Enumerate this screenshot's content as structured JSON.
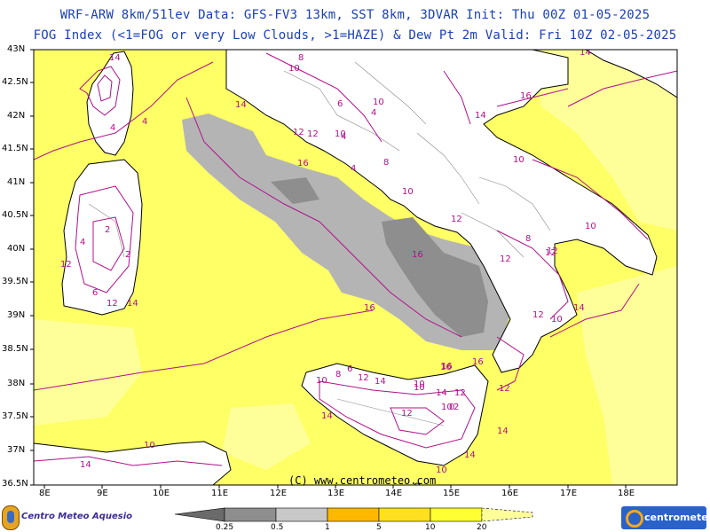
{
  "header": {
    "line1": "WRF-ARW 8km/51lev  Data: GFS-FV3 13km, SST 8km, 3DVAR  Init: Thu 00Z 01-05-2025",
    "line2": "FOG Index (<1=FOG or very Low Clouds, >1=HAZE) & Dew Pt 2m  Valid: Fri 10Z 02-05-2025"
  },
  "axes": {
    "lat_labels": [
      "43N",
      "42.5N",
      "42N",
      "41.5N",
      "41N",
      "40.5N",
      "40N",
      "39.5N",
      "39N",
      "38.5N",
      "38N",
      "37.5N",
      "37N",
      "36.5N"
    ],
    "lon_labels": [
      "8E",
      "9E",
      "10E",
      "11E",
      "12E",
      "13E",
      "14E",
      "15E",
      "16E",
      "17E",
      "18E"
    ]
  },
  "contour_labels": [
    "14",
    "14",
    "10",
    "8",
    "10",
    "4",
    "6",
    "4",
    "14",
    "12",
    "16",
    "16",
    "16",
    "10",
    "12",
    "14",
    "16",
    "10",
    "8",
    "10",
    "12",
    "10",
    "12",
    "16",
    "12",
    "16",
    "12",
    "8",
    "10",
    "4",
    "2",
    "2",
    "4",
    "12",
    "6",
    "12",
    "14",
    "6",
    "8",
    "10",
    "10",
    "16",
    "14",
    "12",
    "14",
    "12",
    "10",
    "14",
    "10",
    "12",
    "2",
    "0",
    "14",
    "14",
    "14",
    "10",
    "4",
    "4",
    "12",
    "10",
    "14",
    "12"
  ],
  "colors": {
    "title": "#1a3fb8",
    "sea_yellow": "#ffff66",
    "haze_pale": "#ffff99",
    "fog_grey": "#b4b4b4",
    "fog_dark": "#8e8e8e",
    "contour": "#b0108a",
    "land": "#ffffff"
  },
  "colorbar": {
    "labels": [
      "0.25",
      "0.5",
      "1",
      "5",
      "10",
      "20"
    ],
    "colors": [
      "#6a6a6a",
      "#8e8e8e",
      "#c8c8c8",
      "#ffb800",
      "#ffe020",
      "#ffff33",
      "#ffff99"
    ]
  },
  "watermark": "(C) www.centrometeo.com",
  "logos": {
    "left": "Centro Meteo Aquesio",
    "right": "centrometeo"
  }
}
